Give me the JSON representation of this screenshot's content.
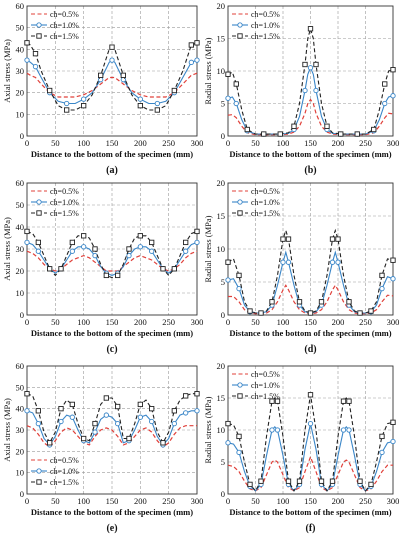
{
  "chart_data": [
    {
      "panel_label": "(a)",
      "type": "line",
      "xlabel": "Distance to the bottom of the specimen (mm)",
      "ylabel": "Axial stress (MPa)",
      "xlim": [
        0,
        300
      ],
      "ylim": [
        0,
        60
      ],
      "xticks": [
        0,
        50,
        100,
        150,
        200,
        250,
        300
      ],
      "yticks": [
        0,
        10,
        20,
        30,
        40,
        50,
        60
      ],
      "grid": true,
      "legend_position": "top-left",
      "x": [
        0,
        6,
        15,
        25,
        40,
        55,
        70,
        85,
        100,
        115,
        130,
        145,
        150,
        155,
        170,
        185,
        200,
        215,
        230,
        245,
        260,
        275,
        290,
        300
      ],
      "series": [
        {
          "name": "ch=0.5%",
          "color": "#e0403a",
          "dash": "dash",
          "marker": "none",
          "values": [
            29,
            28,
            27,
            24,
            20,
            18,
            18,
            18,
            19,
            21,
            24,
            27,
            27,
            27,
            24,
            21,
            19,
            18,
            18,
            18,
            20,
            24,
            28,
            29
          ]
        },
        {
          "name": "ch=1.0%",
          "color": "#3a86c8",
          "dash": "solid",
          "marker": "circle",
          "values": [
            35,
            34,
            32,
            27,
            20,
            16,
            15,
            15,
            17,
            20,
            26,
            34,
            35,
            34,
            26,
            20,
            17,
            15,
            15,
            16,
            20,
            27,
            34,
            35
          ]
        },
        {
          "name": "ch=1.5%",
          "color": "#222222",
          "dash": "dash",
          "marker": "square",
          "values": [
            43,
            42,
            38,
            30,
            21,
            14,
            12,
            12,
            14,
            19,
            28,
            40,
            41,
            40,
            28,
            19,
            14,
            12,
            12,
            14,
            21,
            30,
            42,
            43
          ]
        }
      ]
    },
    {
      "panel_label": "(b)",
      "type": "line",
      "xlabel": "Distance to the bottom of the specimen (mm)",
      "ylabel": "Radial stress (MPa)",
      "xlim": [
        0,
        300
      ],
      "ylim": [
        0,
        20
      ],
      "xticks": [
        0,
        50,
        100,
        150,
        200,
        250,
        300
      ],
      "yticks": [
        0,
        5,
        10,
        15,
        20
      ],
      "grid": true,
      "legend_position": "top-left",
      "x": [
        0,
        8,
        15,
        25,
        35,
        50,
        65,
        80,
        95,
        110,
        120,
        130,
        140,
        145,
        150,
        155,
        160,
        170,
        180,
        190,
        205,
        220,
        235,
        250,
        265,
        275,
        285,
        292,
        300
      ],
      "series": [
        {
          "name": "ch=0.5%",
          "color": "#e0403a",
          "dash": "dash",
          "marker": "none",
          "values": [
            3.2,
            3.3,
            2.8,
            1.5,
            0.5,
            0.2,
            0.2,
            0.2,
            0.2,
            0.3,
            0.6,
            1.5,
            3.5,
            5.0,
            5.6,
            5.0,
            3.5,
            1.5,
            0.6,
            0.3,
            0.2,
            0.2,
            0.2,
            0.2,
            0.5,
            1.5,
            2.8,
            3.5,
            3.4
          ]
        },
        {
          "name": "ch=1.0%",
          "color": "#3a86c8",
          "dash": "solid",
          "marker": "circle",
          "values": [
            5.8,
            6.0,
            5.0,
            2.5,
            0.8,
            0.3,
            0.3,
            0.3,
            0.3,
            0.4,
            1.0,
            3.0,
            7.0,
            9.5,
            10.5,
            9.5,
            7.0,
            3.0,
            1.0,
            0.4,
            0.3,
            0.3,
            0.3,
            0.3,
            0.8,
            2.5,
            5.0,
            6.0,
            6.2
          ]
        },
        {
          "name": "ch=1.5%",
          "color": "#222222",
          "dash": "dash",
          "marker": "square",
          "values": [
            9.5,
            9.8,
            8.0,
            4.0,
            1.0,
            0.3,
            0.3,
            0.3,
            0.3,
            0.5,
            1.5,
            5.0,
            11.0,
            15.0,
            16.5,
            15.0,
            11.0,
            5.0,
            1.5,
            0.5,
            0.3,
            0.3,
            0.3,
            0.3,
            1.0,
            4.0,
            8.0,
            10.0,
            10.2
          ]
        }
      ]
    },
    {
      "panel_label": "(c)",
      "type": "line",
      "xlabel": "Distance to the bottom of the specimen (mm)",
      "ylabel": "Axial stress (MPa)",
      "xlim": [
        0,
        300
      ],
      "ylim": [
        0,
        60
      ],
      "xticks": [
        0,
        50,
        100,
        150,
        200,
        250,
        300
      ],
      "yticks": [
        0,
        10,
        20,
        30,
        40,
        50,
        60
      ],
      "grid": true,
      "legend_position": "top-left",
      "x": [
        0,
        10,
        20,
        30,
        40,
        50,
        60,
        70,
        80,
        90,
        100,
        110,
        120,
        130,
        140,
        150,
        160,
        170,
        180,
        190,
        200,
        210,
        220,
        230,
        240,
        250,
        260,
        270,
        280,
        290,
        300
      ],
      "series": [
        {
          "name": "ch=0.5%",
          "color": "#e0403a",
          "dash": "dash",
          "marker": "none",
          "values": [
            29,
            28,
            26,
            23,
            21,
            20,
            21,
            23,
            25,
            26,
            27,
            26,
            24,
            22,
            20,
            20,
            20,
            22,
            24,
            26,
            27,
            26,
            25,
            23,
            21,
            20,
            21,
            23,
            26,
            28,
            29
          ]
        },
        {
          "name": "ch=1.0%",
          "color": "#3a86c8",
          "dash": "solid",
          "marker": "circle",
          "values": [
            33,
            32,
            29,
            25,
            21,
            19,
            21,
            25,
            29,
            31,
            31,
            30,
            27,
            22,
            19,
            18,
            19,
            22,
            27,
            30,
            31,
            31,
            29,
            25,
            21,
            19,
            21,
            25,
            29,
            32,
            33
          ]
        },
        {
          "name": "ch=1.5%",
          "color": "#222222",
          "dash": "dash",
          "marker": "square",
          "values": [
            38,
            37,
            33,
            27,
            21,
            18,
            21,
            27,
            33,
            36,
            36,
            35,
            30,
            23,
            18,
            17,
            18,
            23,
            30,
            35,
            36,
            36,
            33,
            27,
            21,
            18,
            21,
            27,
            33,
            37,
            38
          ]
        }
      ]
    },
    {
      "panel_label": "(d)",
      "type": "line",
      "xlabel": "Distance to the bottom of the specimen (mm)",
      "ylabel": "Radial stress (MPa)",
      "xlim": [
        0,
        300
      ],
      "ylim": [
        0,
        20
      ],
      "xticks": [
        0,
        50,
        100,
        150,
        200,
        250,
        300
      ],
      "yticks": [
        0,
        5,
        10,
        15,
        20
      ],
      "grid": true,
      "legend_position": "top-left",
      "x": [
        0,
        10,
        20,
        30,
        40,
        50,
        60,
        70,
        80,
        90,
        100,
        105,
        110,
        120,
        130,
        140,
        150,
        160,
        170,
        180,
        190,
        195,
        200,
        210,
        220,
        230,
        240,
        250,
        260,
        270,
        280,
        290,
        300
      ],
      "series": [
        {
          "name": "ch=0.5%",
          "color": "#e0403a",
          "dash": "dash",
          "marker": "none",
          "values": [
            2.8,
            2.8,
            2.0,
            0.8,
            0.3,
            0.2,
            0.2,
            0.3,
            0.8,
            2.0,
            3.8,
            4.5,
            3.8,
            2.0,
            0.8,
            0.3,
            0.2,
            0.3,
            0.8,
            2.0,
            3.8,
            4.5,
            3.8,
            2.0,
            0.8,
            0.3,
            0.2,
            0.2,
            0.3,
            0.8,
            2.0,
            3.0,
            2.9
          ]
        },
        {
          "name": "ch=1.0%",
          "color": "#3a86c8",
          "dash": "solid",
          "marker": "circle",
          "values": [
            5.3,
            5.5,
            4.0,
            1.5,
            0.5,
            0.3,
            0.3,
            0.5,
            1.5,
            4.5,
            8.0,
            9.5,
            8.0,
            4.5,
            1.5,
            0.5,
            0.3,
            0.5,
            1.5,
            4.5,
            8.0,
            9.5,
            8.0,
            4.5,
            1.5,
            0.5,
            0.3,
            0.3,
            0.5,
            1.5,
            4.0,
            5.8,
            5.5
          ]
        },
        {
          "name": "ch=1.5%",
          "color": "#222222",
          "dash": "dash",
          "marker": "square",
          "values": [
            8.0,
            8.5,
            6.0,
            2.0,
            0.6,
            0.3,
            0.3,
            0.6,
            2.0,
            6.0,
            11.5,
            12.8,
            11.5,
            6.0,
            2.0,
            0.6,
            0.3,
            0.6,
            2.0,
            6.0,
            11.5,
            12.8,
            11.5,
            6.0,
            2.0,
            0.6,
            0.3,
            0.3,
            0.6,
            2.0,
            6.0,
            8.5,
            8.3
          ]
        }
      ]
    },
    {
      "panel_label": "(e)",
      "type": "line",
      "xlabel": "Distance to the bottom of the specimen (mm)",
      "ylabel": "Axial stress (MPa)",
      "xlim": [
        0,
        300
      ],
      "ylim": [
        0,
        60
      ],
      "xticks": [
        0,
        50,
        100,
        150,
        200,
        250,
        300
      ],
      "yticks": [
        0,
        10,
        20,
        30,
        40,
        50,
        60
      ],
      "grid": true,
      "legend_position": "bottom-left",
      "x": [
        0,
        10,
        20,
        30,
        40,
        50,
        60,
        70,
        80,
        90,
        100,
        110,
        120,
        130,
        140,
        150,
        160,
        170,
        180,
        190,
        200,
        210,
        220,
        230,
        240,
        250,
        260,
        270,
        280,
        290,
        300
      ],
      "series": [
        {
          "name": "ch=0.5%",
          "color": "#e0403a",
          "dash": "dash",
          "marker": "none",
          "values": [
            32,
            31,
            28,
            24,
            22,
            25,
            29,
            31,
            30,
            27,
            24,
            23,
            27,
            30,
            31,
            30,
            27,
            23,
            24,
            27,
            30,
            31,
            29,
            25,
            22,
            24,
            28,
            31,
            32,
            32,
            32
          ]
        },
        {
          "name": "ch=1.0%",
          "color": "#3a86c8",
          "dash": "solid",
          "marker": "circle",
          "values": [
            39,
            38,
            33,
            26,
            23,
            27,
            34,
            37,
            36,
            30,
            25,
            24,
            29,
            35,
            37,
            36,
            33,
            24,
            25,
            30,
            36,
            37,
            34,
            27,
            23,
            26,
            33,
            37,
            38,
            39,
            39
          ]
        },
        {
          "name": "ch=1.5%",
          "color": "#222222",
          "dash": "dash",
          "marker": "square",
          "values": [
            47,
            46,
            39,
            29,
            24,
            29,
            40,
            44,
            42,
            33,
            26,
            25,
            33,
            42,
            45,
            45,
            41,
            26,
            26,
            33,
            42,
            44,
            40,
            29,
            24,
            29,
            39,
            44,
            46,
            47,
            47
          ]
        }
      ]
    },
    {
      "panel_label": "(f)",
      "type": "line",
      "xlabel": "Distance to the bottom of the specimen (mm)",
      "ylabel": "Radial stress (MPa)",
      "xlim": [
        0,
        300
      ],
      "ylim": [
        0,
        20
      ],
      "xticks": [
        0,
        50,
        100,
        150,
        200,
        250,
        300
      ],
      "yticks": [
        0,
        5,
        10,
        15,
        20
      ],
      "grid": true,
      "legend_position": "top-left",
      "x": [
        0,
        10,
        20,
        30,
        40,
        50,
        60,
        70,
        80,
        85,
        90,
        100,
        110,
        120,
        130,
        140,
        150,
        160,
        170,
        180,
        190,
        200,
        210,
        215,
        220,
        230,
        240,
        250,
        260,
        270,
        280,
        290,
        300
      ],
      "series": [
        {
          "name": "ch=0.5%",
          "color": "#e0403a",
          "dash": "dash",
          "marker": "none",
          "values": [
            4.5,
            4.3,
            3.5,
            2.0,
            0.8,
            0.5,
            1.0,
            3.0,
            5.0,
            5.3,
            5.0,
            3.0,
            1.0,
            0.5,
            1.0,
            3.5,
            5.8,
            3.5,
            1.0,
            0.5,
            1.0,
            3.0,
            5.0,
            5.3,
            5.0,
            3.0,
            1.0,
            0.5,
            0.8,
            2.0,
            3.5,
            4.5,
            4.5
          ]
        },
        {
          "name": "ch=1.0%",
          "color": "#3a86c8",
          "dash": "solid",
          "marker": "circle",
          "values": [
            8.0,
            7.8,
            6.5,
            3.5,
            1.2,
            0.5,
            1.5,
            6.0,
            10.0,
            10.5,
            10.0,
            6.0,
            1.5,
            0.5,
            1.5,
            7.0,
            11.0,
            7.0,
            1.5,
            0.5,
            1.5,
            6.0,
            10.0,
            10.5,
            10.0,
            6.0,
            1.5,
            0.5,
            1.2,
            3.5,
            6.5,
            8.0,
            8.2
          ]
        },
        {
          "name": "ch=1.5%",
          "color": "#222222",
          "dash": "dash",
          "marker": "square",
          "values": [
            11.0,
            10.8,
            9.0,
            5.0,
            1.5,
            0.5,
            2.0,
            9.0,
            14.5,
            15.0,
            14.5,
            9.0,
            2.0,
            0.5,
            2.0,
            10.0,
            15.5,
            10.0,
            2.0,
            0.5,
            2.0,
            9.0,
            14.5,
            15.0,
            14.5,
            9.0,
            2.0,
            0.5,
            1.5,
            5.0,
            9.0,
            11.0,
            11.2
          ]
        }
      ]
    }
  ]
}
